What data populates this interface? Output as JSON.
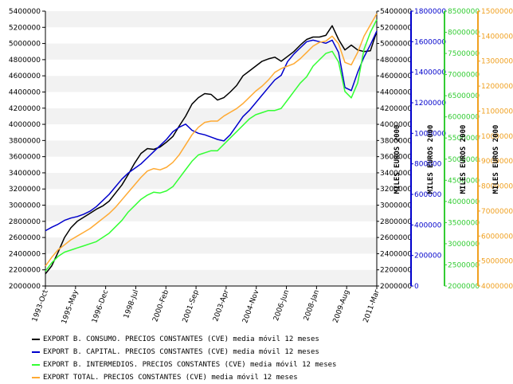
{
  "chart_data": {
    "type": "line",
    "x": [
      "1993-Oct",
      "1994-Jan",
      "1994-Apr",
      "1994-Jul",
      "1994-Oct",
      "1995-Jan",
      "1995-May",
      "1995-Aug",
      "1995-Nov",
      "1996-Feb",
      "1996-Jun",
      "1996-Dec",
      "1997-Apr",
      "1997-Aug",
      "1997-Dec",
      "1998-Apr",
      "1998-Jul",
      "1998-Oct",
      "1999-Jan",
      "1999-Apr",
      "1999-Jul",
      "1999-Oct",
      "2000-Feb",
      "2000-Jun",
      "2000-Oct",
      "2001-Feb",
      "2001-Sep",
      "2002-Jan",
      "2002-May",
      "2002-Sep",
      "2003-Apr",
      "2003-Aug",
      "2003-Dec",
      "2004-Apr",
      "2004-Nov",
      "2005-Mar",
      "2005-Jul",
      "2005-Dec",
      "2006-Jun",
      "2006-Oct",
      "2007-Feb",
      "2007-Jun",
      "2007-Oct",
      "2008-Jan",
      "2008-May",
      "2008-Sep",
      "2009-Jan",
      "2009-Aug",
      "2009-Dec",
      "2010-Apr",
      "2010-Aug",
      "2010-Nov",
      "2011-Mar"
    ],
    "tick_labels": [
      "1993-Oct",
      "1995-May",
      "1996-Dec",
      "1998-Jul",
      "2000-Feb",
      "2001-Sep",
      "2003-Apr",
      "2004-Nov",
      "2006-Jun",
      "2008-Jan",
      "2009-Aug",
      "2011-Mar"
    ],
    "axes": [
      {
        "side": "left",
        "ticks": [
          "2000000",
          "2200000",
          "2400000",
          "2600000",
          "2800000",
          "3000000",
          "3200000",
          "3400000",
          "3600000",
          "3800000",
          "4000000",
          "4200000",
          "4400000",
          "4600000",
          "4800000",
          "5000000",
          "5200000",
          "5400000"
        ],
        "ylim": [
          2000000,
          5400000
        ],
        "color": "#000000",
        "label": ""
      },
      {
        "side": "right",
        "ticks": [
          "2000000",
          "2200000",
          "2400000",
          "2600000",
          "2800000",
          "3000000",
          "3200000",
          "3400000",
          "3600000",
          "3800000",
          "4000000",
          "4200000",
          "4400000",
          "4600000",
          "4800000",
          "5000000",
          "5200000",
          "5400000"
        ],
        "ylim": [
          2000000,
          5400000
        ],
        "color": "#000000",
        "label": "MILES EUROS 2000"
      },
      {
        "side": "right",
        "ticks": [
          "0",
          "200000",
          "400000",
          "600000",
          "800000",
          "1000000",
          "1200000",
          "1400000",
          "1600000",
          "1800000"
        ],
        "ylim": [
          0,
          1800000
        ],
        "color": "#0000cc",
        "label": "MILES EUROS 2000"
      },
      {
        "side": "right",
        "ticks": [
          "2000000",
          "2500000",
          "3000000",
          "3500000",
          "4000000",
          "4500000",
          "5000000",
          "5500000",
          "6000000",
          "6500000",
          "7000000",
          "7500000",
          "8000000",
          "8500000"
        ],
        "ylim": [
          2000000,
          8500000
        ],
        "color": "#33cc33",
        "label": "MILES EUROS 2000"
      },
      {
        "side": "right",
        "ticks": [
          "4000000",
          "5000000",
          "6000000",
          "7000000",
          "8000000",
          "9000000",
          "10000000",
          "11000000",
          "12000000",
          "13000000",
          "14000000",
          "15000000"
        ],
        "ylim": [
          4000000,
          15000000
        ],
        "color": "#f0a020",
        "label": "MILES EUROS 2000"
      }
    ],
    "series": [
      {
        "name": "EXPORT B. CONSUMO. PRECIOS CONSTANTES (CVE) media móvil 12 meses",
        "color": "#000000",
        "axis": 0,
        "values": [
          2150000,
          2250000,
          2420000,
          2600000,
          2720000,
          2800000,
          2850000,
          2900000,
          2950000,
          2990000,
          3050000,
          3150000,
          3250000,
          3380000,
          3520000,
          3640000,
          3700000,
          3690000,
          3720000,
          3780000,
          3850000,
          3980000,
          4100000,
          4250000,
          4330000,
          4380000,
          4370000,
          4300000,
          4330000,
          4400000,
          4480000,
          4600000,
          4660000,
          4720000,
          4780000,
          4810000,
          4830000,
          4780000,
          4840000,
          4900000,
          4980000,
          5050000,
          5080000,
          5080000,
          5100000,
          5220000,
          5050000,
          4920000,
          4980000,
          4920000,
          4900000,
          4910000,
          5150000
        ]
      },
      {
        "name": "EXPORT B. CAPITAL. PRECIOS CONSTANTES (CVE) media móvil 12 meses",
        "color": "#0000cc",
        "axis": 2,
        "values": [
          362000,
          385000,
          405000,
          430000,
          445000,
          455000,
          470000,
          490000,
          520000,
          560000,
          600000,
          650000,
          700000,
          740000,
          770000,
          800000,
          840000,
          880000,
          920000,
          960000,
          1010000,
          1040000,
          1060000,
          1020000,
          1000000,
          990000,
          975000,
          960000,
          950000,
          990000,
          1050000,
          1110000,
          1150000,
          1200000,
          1250000,
          1300000,
          1350000,
          1380000,
          1470000,
          1520000,
          1560000,
          1600000,
          1610000,
          1600000,
          1590000,
          1610000,
          1530000,
          1300000,
          1280000,
          1400000,
          1500000,
          1580000,
          1670000
        ]
      },
      {
        "name": "EXPORT B. INTERMEDIOS. PRECIOS CONSTANTES (CVE) media móvil 12 meses",
        "color": "#33ff33",
        "axis": 3,
        "values": [
          2350000,
          2550000,
          2700000,
          2800000,
          2850000,
          2900000,
          2950000,
          3000000,
          3050000,
          3150000,
          3250000,
          3400000,
          3550000,
          3750000,
          3900000,
          4050000,
          4150000,
          4220000,
          4200000,
          4250000,
          4350000,
          4550000,
          4750000,
          4950000,
          5100000,
          5150000,
          5200000,
          5200000,
          5350000,
          5500000,
          5650000,
          5800000,
          5950000,
          6050000,
          6100000,
          6150000,
          6150000,
          6200000,
          6400000,
          6600000,
          6800000,
          6950000,
          7200000,
          7350000,
          7500000,
          7550000,
          7300000,
          6600000,
          6450000,
          6800000,
          7600000,
          8000000,
          8300000
        ]
      },
      {
        "name": "EXPORT TOTAL. PRECIOS CONSTANTES (CVE) media móvil 12 meses",
        "color": "#ffaa33",
        "axis": 4,
        "values": [
          4800000,
          5150000,
          5450000,
          5650000,
          5850000,
          6000000,
          6150000,
          6300000,
          6500000,
          6700000,
          6900000,
          7150000,
          7450000,
          7750000,
          8050000,
          8350000,
          8600000,
          8700000,
          8650000,
          8750000,
          8950000,
          9250000,
          9650000,
          10050000,
          10350000,
          10550000,
          10600000,
          10600000,
          10800000,
          10950000,
          11100000,
          11300000,
          11550000,
          11800000,
          12000000,
          12250000,
          12550000,
          12700000,
          12800000,
          12900000,
          13100000,
          13350000,
          13600000,
          13750000,
          13800000,
          14000000,
          13700000,
          12950000,
          12850000,
          13350000,
          14000000,
          14450000,
          14900000
        ]
      }
    ]
  }
}
